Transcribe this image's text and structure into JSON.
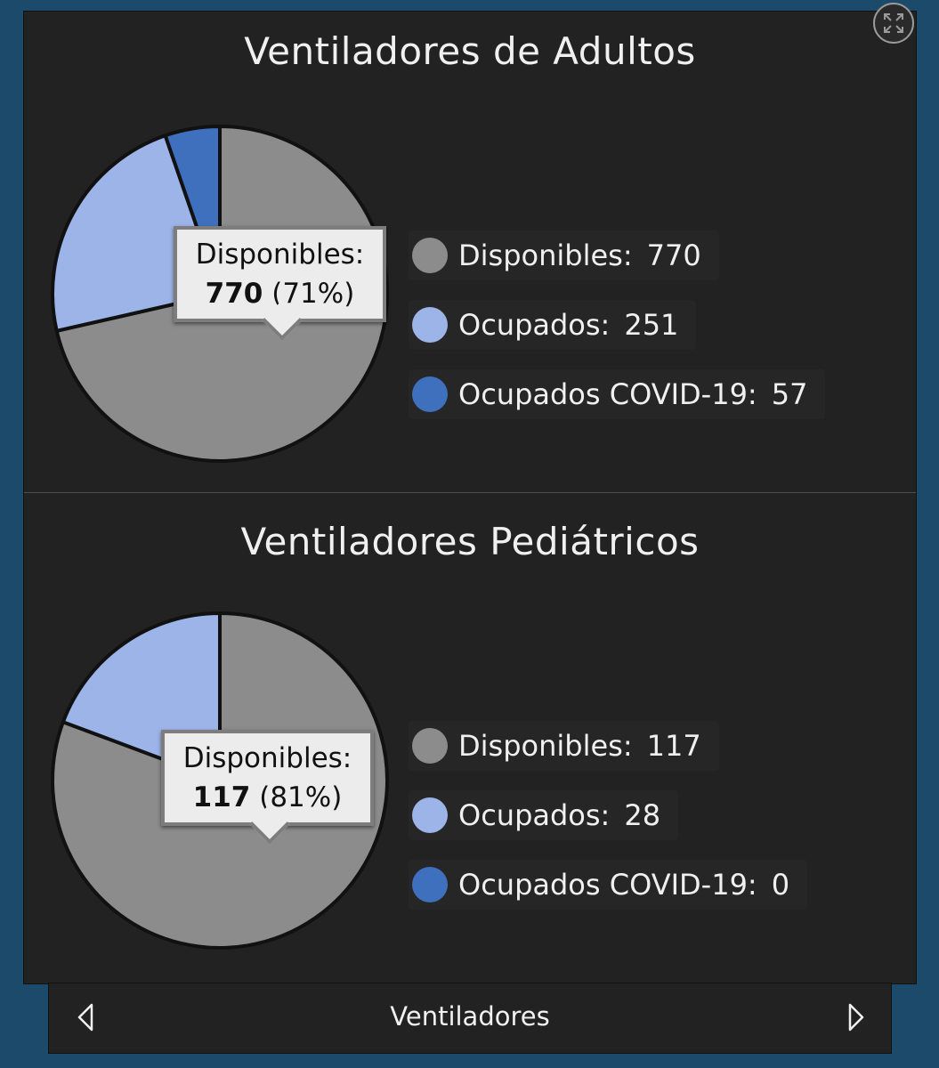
{
  "widget": {
    "footer_label": "Ventiladores",
    "expand_icon": "expand-icon",
    "prev_icon": "triangle-left-icon",
    "next_icon": "triangle-right-icon"
  },
  "colors": {
    "disponibles": "#8c8c8c",
    "ocupados": "#9db4e8",
    "ocupados_covid": "#3e70bd"
  },
  "chart_data": [
    {
      "type": "pie",
      "title": "Ventiladores de Adultos",
      "categories": [
        "Disponibles",
        "Ocupados",
        "Ocupados COVID-19"
      ],
      "values": [
        770,
        251,
        57
      ],
      "legend": [
        {
          "label": "Disponibles:",
          "value": "770"
        },
        {
          "label": "Ocupados:",
          "value": "251"
        },
        {
          "label": "Ocupados COVID-19:",
          "value": "57"
        }
      ],
      "tooltip": {
        "label": "Disponibles:",
        "value": "770",
        "percent": "(71%)"
      },
      "legend_position": "right"
    },
    {
      "type": "pie",
      "title": "Ventiladores Pediátricos",
      "categories": [
        "Disponibles",
        "Ocupados",
        "Ocupados COVID-19"
      ],
      "values": [
        117,
        28,
        0
      ],
      "legend": [
        {
          "label": "Disponibles:",
          "value": "117"
        },
        {
          "label": "Ocupados:",
          "value": "28"
        },
        {
          "label": "Ocupados COVID-19:",
          "value": "0"
        }
      ],
      "tooltip": {
        "label": "Disponibles:",
        "value": "117",
        "percent": "(81%)"
      },
      "legend_position": "right"
    }
  ]
}
